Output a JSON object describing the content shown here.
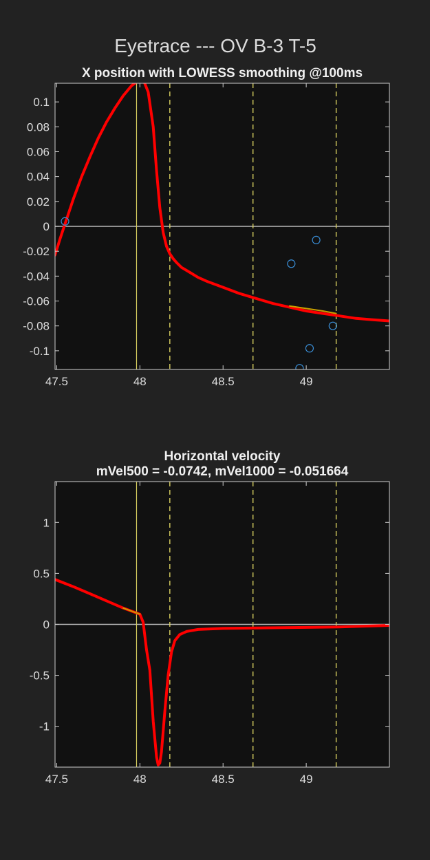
{
  "figure": {
    "title": "Eyetrace --- OV B-3 T-5"
  },
  "colors": {
    "background": "#222222",
    "axes_background": "#111111",
    "trace": "#ff0000",
    "fit": "#c8a000",
    "event_line": "#d8d060",
    "zero_line": "#bbbbbb",
    "samples": "#3a8fd8"
  },
  "chart_data": [
    {
      "type": "line",
      "title": "X position with LOWESS smoothing @100ms",
      "xlim": [
        47.49,
        49.5
      ],
      "ylim": [
        -0.115,
        0.115
      ],
      "xticks": [
        47.5,
        48,
        48.5,
        49
      ],
      "xtick_labels": [
        "47.5",
        "48",
        "48.5",
        "49"
      ],
      "yticks": [
        0.1,
        0.08,
        0.06,
        0.04,
        0.02,
        0,
        -0.02,
        -0.04,
        -0.06,
        -0.08,
        -0.1
      ],
      "ytick_labels": [
        "0.1",
        "0.08",
        "0.06",
        "0.04",
        "0.02",
        "0",
        "-0.02",
        "-0.04",
        "-0.06",
        "-0.08",
        "-0.1"
      ],
      "zero_line": 0,
      "event_solid": [
        47.98
      ],
      "event_dashed": [
        48.18,
        48.68,
        49.18
      ],
      "series": [
        {
          "role": "smoothed",
          "x": [
            47.49,
            47.52,
            47.55,
            47.6,
            47.65,
            47.7,
            47.75,
            47.8,
            47.85,
            47.9,
            47.95,
            47.98,
            48.0,
            48.02,
            48.05,
            48.08,
            48.1,
            48.12,
            48.14,
            48.16,
            48.18,
            48.2,
            48.22,
            48.25,
            48.3,
            48.35,
            48.4,
            48.5,
            48.6,
            48.7,
            48.8,
            48.9,
            49.0,
            49.1,
            49.2,
            49.3,
            49.4,
            49.5
          ],
          "y": [
            -0.023,
            -0.01,
            0.002,
            0.022,
            0.04,
            0.056,
            0.071,
            0.084,
            0.095,
            0.105,
            0.113,
            0.116,
            0.118,
            0.118,
            0.108,
            0.08,
            0.045,
            0.015,
            -0.005,
            -0.016,
            -0.022,
            -0.026,
            -0.029,
            -0.033,
            -0.037,
            -0.041,
            -0.044,
            -0.049,
            -0.054,
            -0.058,
            -0.062,
            -0.065,
            -0.068,
            -0.07,
            -0.072,
            -0.074,
            -0.075,
            -0.076
          ]
        },
        {
          "role": "fit",
          "x": [
            48.9,
            49.0,
            49.1,
            49.18
          ],
          "y": [
            -0.064,
            -0.066,
            -0.068,
            -0.07
          ]
        },
        {
          "role": "samples",
          "x": [
            47.55,
            48.91,
            48.96,
            49.02,
            49.06,
            49.16
          ],
          "y": [
            0.004,
            -0.03,
            -0.114,
            -0.098,
            -0.011,
            -0.08
          ]
        }
      ]
    },
    {
      "type": "line",
      "title": "Horizontal velocity",
      "subtitle": "mVel500 = -0.0742, mVel1000 = -0.051664",
      "xlim": [
        47.49,
        49.5
      ],
      "ylim": [
        -1.4,
        1.4
      ],
      "xticks": [
        47.5,
        48,
        48.5,
        49
      ],
      "xtick_labels": [
        "47.5",
        "48",
        "48.5",
        "49"
      ],
      "yticks": [
        1,
        0.5,
        0,
        -0.5,
        -1
      ],
      "ytick_labels": [
        "1",
        "0.5",
        "0",
        "-0.5",
        "-1"
      ],
      "zero_line": 0,
      "event_solid": [
        47.98
      ],
      "event_dashed": [
        48.18,
        48.68,
        49.18
      ],
      "series": [
        {
          "role": "velocity",
          "x": [
            47.49,
            47.6,
            47.7,
            47.8,
            47.9,
            47.95,
            48.0,
            48.02,
            48.04,
            48.06,
            48.08,
            48.1,
            48.11,
            48.12,
            48.13,
            48.15,
            48.17,
            48.19,
            48.21,
            48.24,
            48.28,
            48.35,
            48.5,
            48.7,
            49.0,
            49.2,
            49.4,
            49.5
          ],
          "y": [
            0.44,
            0.37,
            0.3,
            0.23,
            0.16,
            0.13,
            0.1,
            0.02,
            -0.25,
            -0.45,
            -0.95,
            -1.3,
            -1.38,
            -1.36,
            -1.25,
            -0.85,
            -0.5,
            -0.27,
            -0.16,
            -0.1,
            -0.07,
            -0.05,
            -0.04,
            -0.035,
            -0.03,
            -0.025,
            -0.015,
            -0.01
          ]
        },
        {
          "role": "fit",
          "x": [
            47.9,
            47.95,
            48.0
          ],
          "y": [
            0.16,
            0.13,
            0.1
          ]
        }
      ]
    }
  ]
}
